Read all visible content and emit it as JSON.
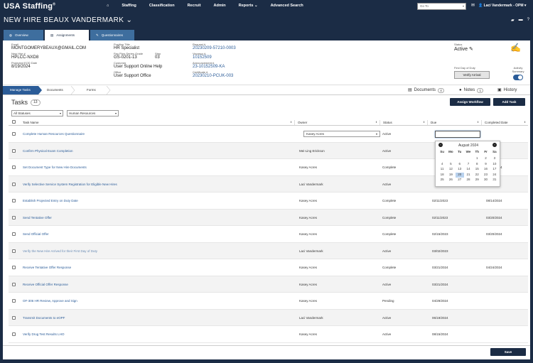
{
  "app": {
    "brand": "USA Staffing",
    "brand_mark": "®"
  },
  "nav": {
    "items": [
      "Staffing",
      "Classification",
      "Recruit",
      "Admin",
      "Reports ⌄",
      "Advanced Search"
    ],
    "goto_placeholder": "Go To",
    "user": "Laci Vandermark - OPM"
  },
  "page": {
    "title": "NEW HIRE BEAUX VANDERMARK ⌄"
  },
  "tabs": [
    {
      "label": "Overview",
      "icon": "globe-icon"
    },
    {
      "label": "Assignments",
      "icon": "clipboard-icon"
    },
    {
      "label": "Questionnaires",
      "icon": "edit-icon"
    }
  ],
  "info": {
    "email_label": "Email",
    "email": "MONTGOMERYBEAUX@GMAIL.COM",
    "newhire_label": "New Hire #",
    "newhire": "HPLCC-NXD8",
    "projected_eod_label": "Projected EOD Date",
    "projected_eod": "8/19/2024",
    "position_title_label": "Position Title",
    "position_title": "HR Specialist",
    "pay_plan_label": "Pay Plan-Series-Grade",
    "pay_plan": "GS-0201-13",
    "step_label": "Step",
    "step": "03",
    "customer_label": "Customer",
    "customer": "User Support Online Help",
    "office_label": "Office",
    "office": "User Support Office",
    "request_label": "Request #",
    "request": "20230209-57210-0003",
    "vacancy_label": "Vacancy #",
    "vacancy": "10152509",
    "announcement_label": "Announcement #",
    "announcement": "23-10152509-KA",
    "certificate_label": "Certificate #",
    "certificate": "20230210-PCUK-003",
    "status_label": "Status",
    "status": "Active",
    "first_day_label": "First Day of Duty",
    "verify_arrival": "Verify Arrival",
    "activity_summary_label": "Activity Summary"
  },
  "subtabs": {
    "steps": [
      "Manage Tasks",
      "Documents",
      "Forms"
    ],
    "documents_label": "Documents",
    "documents_count": "4",
    "notes_label": "Notes",
    "notes_count": "1",
    "history_label": "History"
  },
  "tasks": {
    "title": "Tasks",
    "count": "13",
    "assign_workflow": "Assign Workflow",
    "add_task": "Add Task",
    "filter_status": "All Statuses",
    "filter_area": "Human Resources",
    "columns": [
      "Task Name",
      "Owner",
      "Status",
      "Due",
      "Completed Date"
    ],
    "rows": [
      {
        "name": "Complete Human Resources Questionnaire",
        "owner": "Kasey Acres",
        "status": "Active",
        "due": "",
        "completed": ""
      },
      {
        "name": "Confirm Physical Exam Completion",
        "owner": "Mei-Ling Erickson",
        "status": "Active",
        "due": "",
        "completed": ""
      },
      {
        "name": "Set Document Type for New Hire Documents",
        "owner": "Kasey Acres",
        "status": "Complete",
        "due": "",
        "completed": "08/14/2024"
      },
      {
        "name": "Verify Selective Service System Registration for Eligible New Hires",
        "owner": "Laci Vandermark",
        "status": "Active",
        "due": "",
        "completed": ""
      },
      {
        "name": "Establish Projected Entry on Duty Date",
        "owner": "Kasey Acres",
        "status": "Complete",
        "due": "02/11/2023",
        "completed": "08/14/2024"
      },
      {
        "name": "Send Tentative Offer",
        "owner": "Kasey Acres",
        "status": "Complete",
        "due": "02/11/2023",
        "completed": "03/20/2024"
      },
      {
        "name": "Send Official Offer",
        "owner": "Kasey Acres",
        "status": "Complete",
        "due": "02/15/2023",
        "completed": "03/20/2024"
      },
      {
        "name": "Verify the New Hire Arrived for their First Day of Duty",
        "owner": "Laci Vandermark",
        "status": "Active",
        "due": "03/02/2023",
        "completed": ""
      },
      {
        "name": "Receive Tentative Offer Response",
        "owner": "Kasey Acres",
        "status": "Complete",
        "due": "03/21/2024",
        "completed": "04/24/2024"
      },
      {
        "name": "Receive Official Offer Response",
        "owner": "Kasey Acres",
        "status": "Active",
        "due": "03/21/2024",
        "completed": ""
      },
      {
        "name": "OF-306 HR Review, Approve and Sign",
        "owner": "Kasey Acres",
        "status": "Pending",
        "due": "04/29/2024",
        "completed": ""
      },
      {
        "name": "Transmit Documents to eOPF",
        "owner": "Laci Vandermark",
        "status": "Active",
        "due": "06/19/2024",
        "completed": ""
      },
      {
        "name": "Verify Drug Test Results LHO",
        "owner": "Kasey Acres",
        "status": "Active",
        "due": "08/15/2024",
        "completed": ""
      }
    ]
  },
  "calendar": {
    "month": "August 2024",
    "dow": [
      "Su",
      "Mo",
      "Tu",
      "We",
      "Th",
      "Fr",
      "Sa"
    ],
    "days": [
      "",
      "",
      "",
      "",
      "1",
      "2",
      "3",
      "4",
      "5",
      "6",
      "7",
      "8",
      "9",
      "10",
      "11",
      "12",
      "13",
      "14",
      "15",
      "16",
      "17",
      "18",
      "19",
      "20",
      "21",
      "22",
      "23",
      "24",
      "25",
      "26",
      "27",
      "28",
      "29",
      "30",
      "31"
    ],
    "today": "20"
  },
  "footer": {
    "save": "Save"
  },
  "colors": {
    "navy": "#1b2c45",
    "link": "#2b5c98",
    "tab_blue": "#3e6e9e"
  }
}
